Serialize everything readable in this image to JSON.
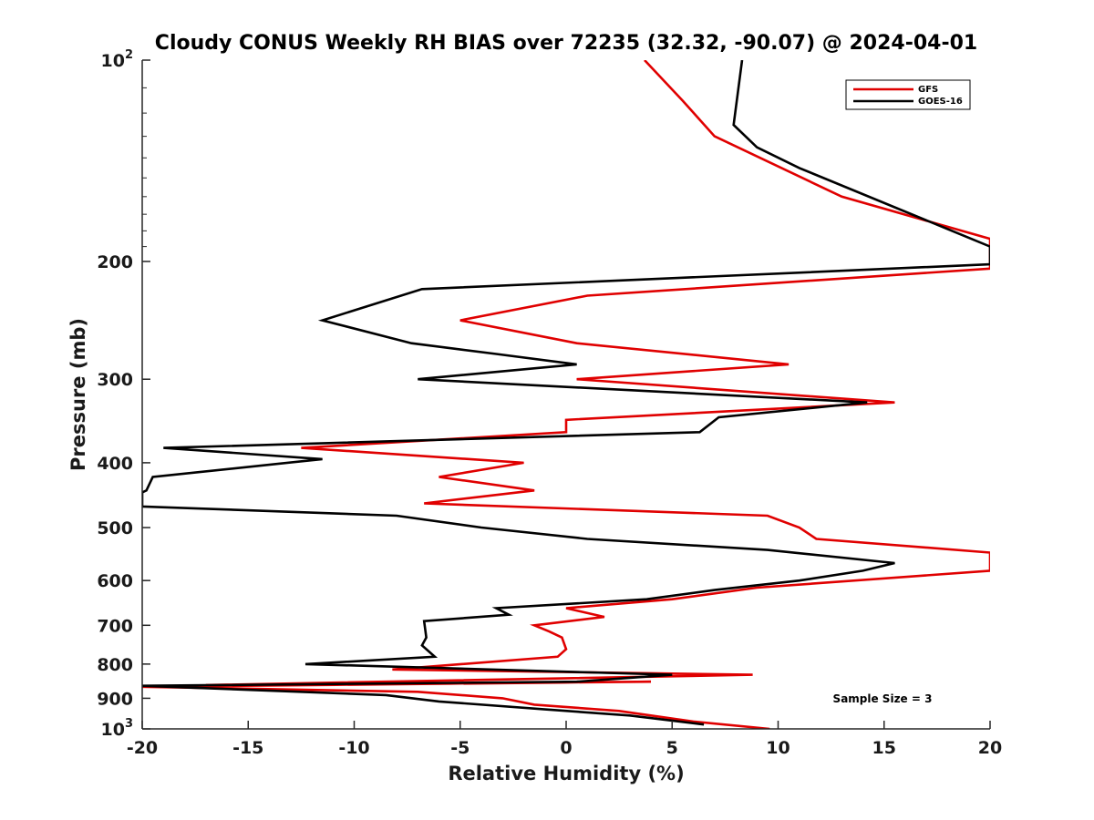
{
  "chart_data": {
    "type": "line",
    "title": "Cloudy CONUS Weekly RH BIAS over 72235 (32.32, -90.07) @ 2024-04-01",
    "xlabel": "Relative Humidity (%)",
    "ylabel": "Pressure (mb)",
    "xlim": [
      -20,
      20
    ],
    "ylim": [
      100,
      1000
    ],
    "yscale": "log",
    "y_reversed": true,
    "x_ticks": [
      "-20",
      "-15",
      "-10",
      "-5",
      "0",
      "5",
      "10",
      "15",
      "20"
    ],
    "y_ticks": [
      {
        "value": 100,
        "base": "10",
        "exp": "2"
      },
      {
        "value": 200,
        "label": "200"
      },
      {
        "value": 300,
        "label": "300"
      },
      {
        "value": 400,
        "label": "400"
      },
      {
        "value": 500,
        "label": "500"
      },
      {
        "value": 600,
        "label": "600"
      },
      {
        "value": 700,
        "label": "700"
      },
      {
        "value": 800,
        "label": "800"
      },
      {
        "value": 900,
        "label": "900"
      },
      {
        "value": 1000,
        "base": "10",
        "exp": "3"
      }
    ],
    "legend_position": "top-right",
    "annotation": "Sample Size = 3",
    "series": [
      {
        "name": "GFS",
        "color": "#e00000",
        "points": [
          [
            3.7,
            100
          ],
          [
            5.5,
            115
          ],
          [
            7.0,
            130
          ],
          [
            13.0,
            160
          ],
          [
            20.0,
            185
          ],
          [
            20.0,
            205
          ],
          [
            1.0,
            225
          ],
          [
            -5.0,
            245
          ],
          [
            0.5,
            265
          ],
          [
            10.5,
            285
          ],
          [
            0.5,
            300
          ],
          [
            15.5,
            325
          ],
          [
            0.0,
            345
          ],
          [
            0.0,
            360
          ],
          [
            -12.5,
            380
          ],
          [
            -2.0,
            400
          ],
          [
            -6.0,
            420
          ],
          [
            -1.5,
            440
          ],
          [
            -6.7,
            460
          ],
          [
            9.5,
            480
          ],
          [
            11.0,
            500
          ],
          [
            11.8,
            520
          ],
          [
            20.0,
            545
          ],
          [
            20.0,
            580
          ],
          [
            9.0,
            615
          ],
          [
            5.0,
            640
          ],
          [
            0.0,
            660
          ],
          [
            1.8,
            680
          ],
          [
            -1.5,
            700
          ],
          [
            -0.8,
            715
          ],
          [
            -0.2,
            730
          ],
          [
            0.0,
            760
          ],
          [
            -0.4,
            780
          ],
          [
            -8.2,
            815
          ],
          [
            8.8,
            830
          ],
          [
            -17.0,
            860
          ],
          [
            4.0,
            850
          ],
          [
            -20.0,
            865
          ],
          [
            -7.0,
            880
          ],
          [
            -3.0,
            900
          ],
          [
            -1.5,
            920
          ],
          [
            2.5,
            940
          ],
          [
            4.0,
            955
          ],
          [
            6.0,
            975
          ],
          [
            9.6,
            1000
          ]
        ]
      },
      {
        "name": "GOES-16",
        "color": "#000000",
        "points": [
          [
            8.3,
            100
          ],
          [
            7.9,
            125
          ],
          [
            9.0,
            135
          ],
          [
            11.0,
            145
          ],
          [
            20.0,
            190
          ],
          [
            20.0,
            202
          ],
          [
            -6.8,
            220
          ],
          [
            -11.5,
            245
          ],
          [
            -7.3,
            265
          ],
          [
            -3.3,
            275
          ],
          [
            0.5,
            285
          ],
          [
            -7.0,
            300
          ],
          [
            14.2,
            325
          ],
          [
            7.2,
            342
          ],
          [
            6.3,
            360
          ],
          [
            -19.0,
            380
          ],
          [
            -11.5,
            395
          ],
          [
            -19.5,
            420
          ],
          [
            -19.8,
            440
          ],
          [
            -20.0,
            443
          ],
          [
            -20.0,
            465
          ],
          [
            -8.0,
            480
          ],
          [
            -4.0,
            500
          ],
          [
            1.0,
            520
          ],
          [
            9.5,
            540
          ],
          [
            15.5,
            565
          ],
          [
            14.0,
            580
          ],
          [
            11.0,
            600
          ],
          [
            7.0,
            620
          ],
          [
            3.8,
            640
          ],
          [
            -3.3,
            660
          ],
          [
            -2.7,
            675
          ],
          [
            -6.7,
            690
          ],
          [
            -6.6,
            730
          ],
          [
            -6.8,
            750
          ],
          [
            -6.2,
            780
          ],
          [
            -12.3,
            800
          ],
          [
            5.0,
            830
          ],
          [
            0.5,
            850
          ],
          [
            -20.0,
            862
          ],
          [
            -8.5,
            890
          ],
          [
            -6.0,
            910
          ],
          [
            -1.0,
            935
          ],
          [
            3.0,
            955
          ],
          [
            6.5,
            985
          ]
        ]
      }
    ]
  }
}
